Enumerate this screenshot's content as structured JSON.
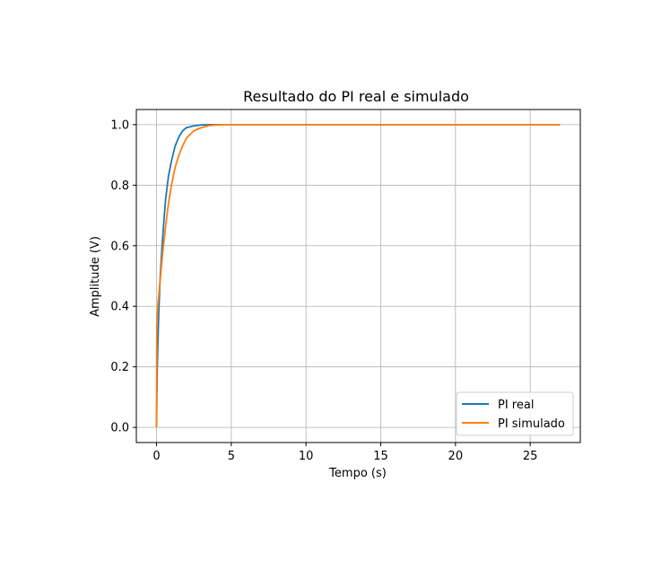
{
  "chart_data": {
    "type": "line",
    "title": "Resultado do PI real e simulado",
    "xlabel": "Tempo (s)",
    "ylabel": "Amplitude (V)",
    "xlim": [
      -1.35,
      28.35
    ],
    "ylim": [
      -0.05,
      1.05
    ],
    "xticks": [
      0,
      5,
      10,
      15,
      20,
      25
    ],
    "yticks": [
      0.0,
      0.2,
      0.4,
      0.6,
      0.8,
      1.0
    ],
    "xtick_labels": [
      "0",
      "5",
      "10",
      "15",
      "20",
      "25"
    ],
    "ytick_labels": [
      "0.0",
      "0.2",
      "0.4",
      "0.6",
      "0.8",
      "1.0"
    ],
    "grid": true,
    "legend_position": "lower-right",
    "series": [
      {
        "name": "PI real",
        "color": "#1f77b4",
        "x": [
          0,
          0.05,
          0.15,
          0.25,
          0.4,
          0.6,
          0.8,
          1.0,
          1.25,
          1.5,
          1.75,
          2.0,
          2.5,
          3.0,
          3.5,
          4.0,
          5.0,
          10.0,
          15.0,
          20.0,
          25.0,
          27.0
        ],
        "y": [
          0,
          0.2,
          0.38,
          0.5,
          0.62,
          0.75,
          0.83,
          0.88,
          0.93,
          0.96,
          0.98,
          0.99,
          0.996,
          0.999,
          1.0,
          1.0,
          1.0,
          1.0,
          1.0,
          1.0,
          1.0,
          1.0
        ]
      },
      {
        "name": "PI simulado",
        "color": "#ff7f0e",
        "x": [
          0,
          0.02,
          0.1,
          0.25,
          0.4,
          0.6,
          0.8,
          1.0,
          1.25,
          1.5,
          1.75,
          2.0,
          2.5,
          3.0,
          3.5,
          4.0,
          4.5,
          5.0,
          10.0,
          15.0,
          20.0,
          25.0,
          27.0
        ],
        "y": [
          0,
          0.34,
          0.41,
          0.49,
          0.57,
          0.66,
          0.74,
          0.8,
          0.86,
          0.9,
          0.93,
          0.955,
          0.98,
          0.99,
          0.997,
          0.999,
          1.0,
          1.0,
          1.0,
          1.0,
          1.0,
          1.0,
          1.0
        ]
      }
    ]
  }
}
